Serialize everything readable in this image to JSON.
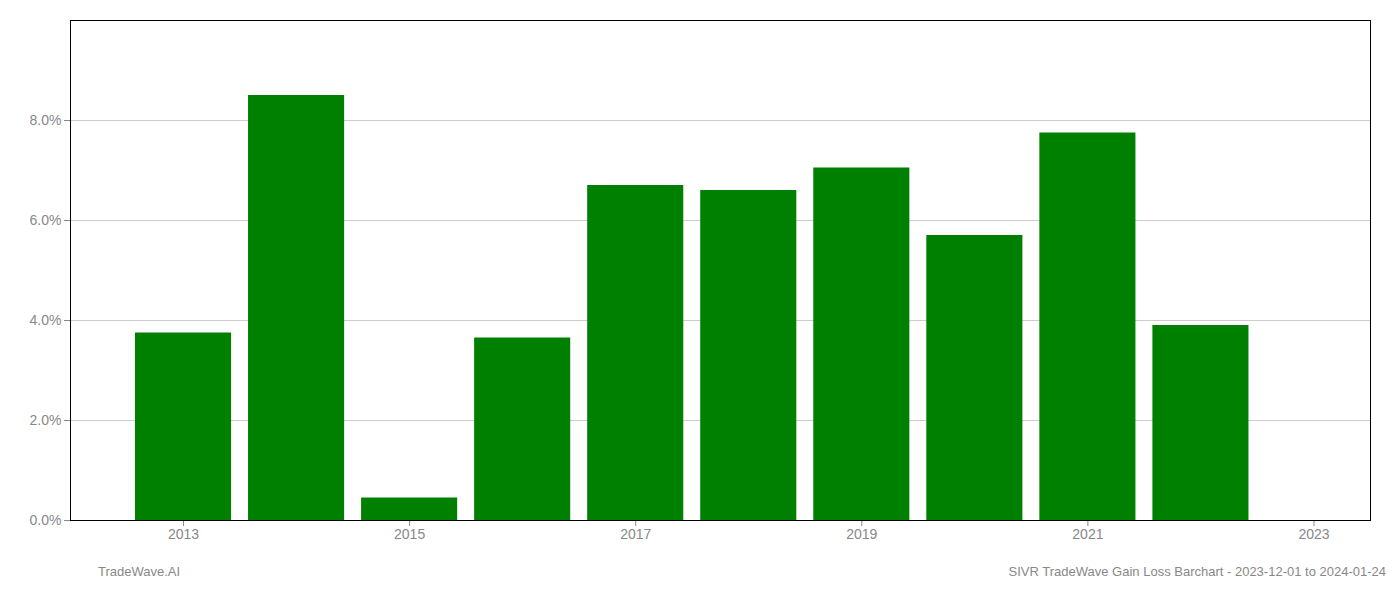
{
  "chart_data": {
    "type": "bar",
    "title": "SIVR TradeWave Gain Loss Barchart - 2023-12-01 to 2024-01-24",
    "annotations": [
      "TradeWave.AI"
    ],
    "x": [
      2013,
      2014,
      2015,
      2016,
      2017,
      2018,
      2019,
      2020,
      2021,
      2022
    ],
    "values": [
      0.0375,
      0.085,
      0.0045,
      0.0365,
      0.067,
      0.066,
      0.0705,
      0.057,
      0.0775,
      0.039
    ],
    "color": "#008000",
    "xlim": [
      2012.0,
      2023.5
    ],
    "xticks": [
      2013,
      2015,
      2017,
      2019,
      2021,
      2023
    ],
    "ylim": [
      0,
      0.1
    ],
    "yticks": [
      {
        "value": 0.0,
        "label": "0.0%"
      },
      {
        "value": 0.02,
        "label": "2.0%"
      },
      {
        "value": 0.04,
        "label": "4.0%"
      },
      {
        "value": 0.06,
        "label": "6.0%"
      },
      {
        "value": 0.08,
        "label": "8.0%"
      }
    ],
    "grid": "y"
  }
}
